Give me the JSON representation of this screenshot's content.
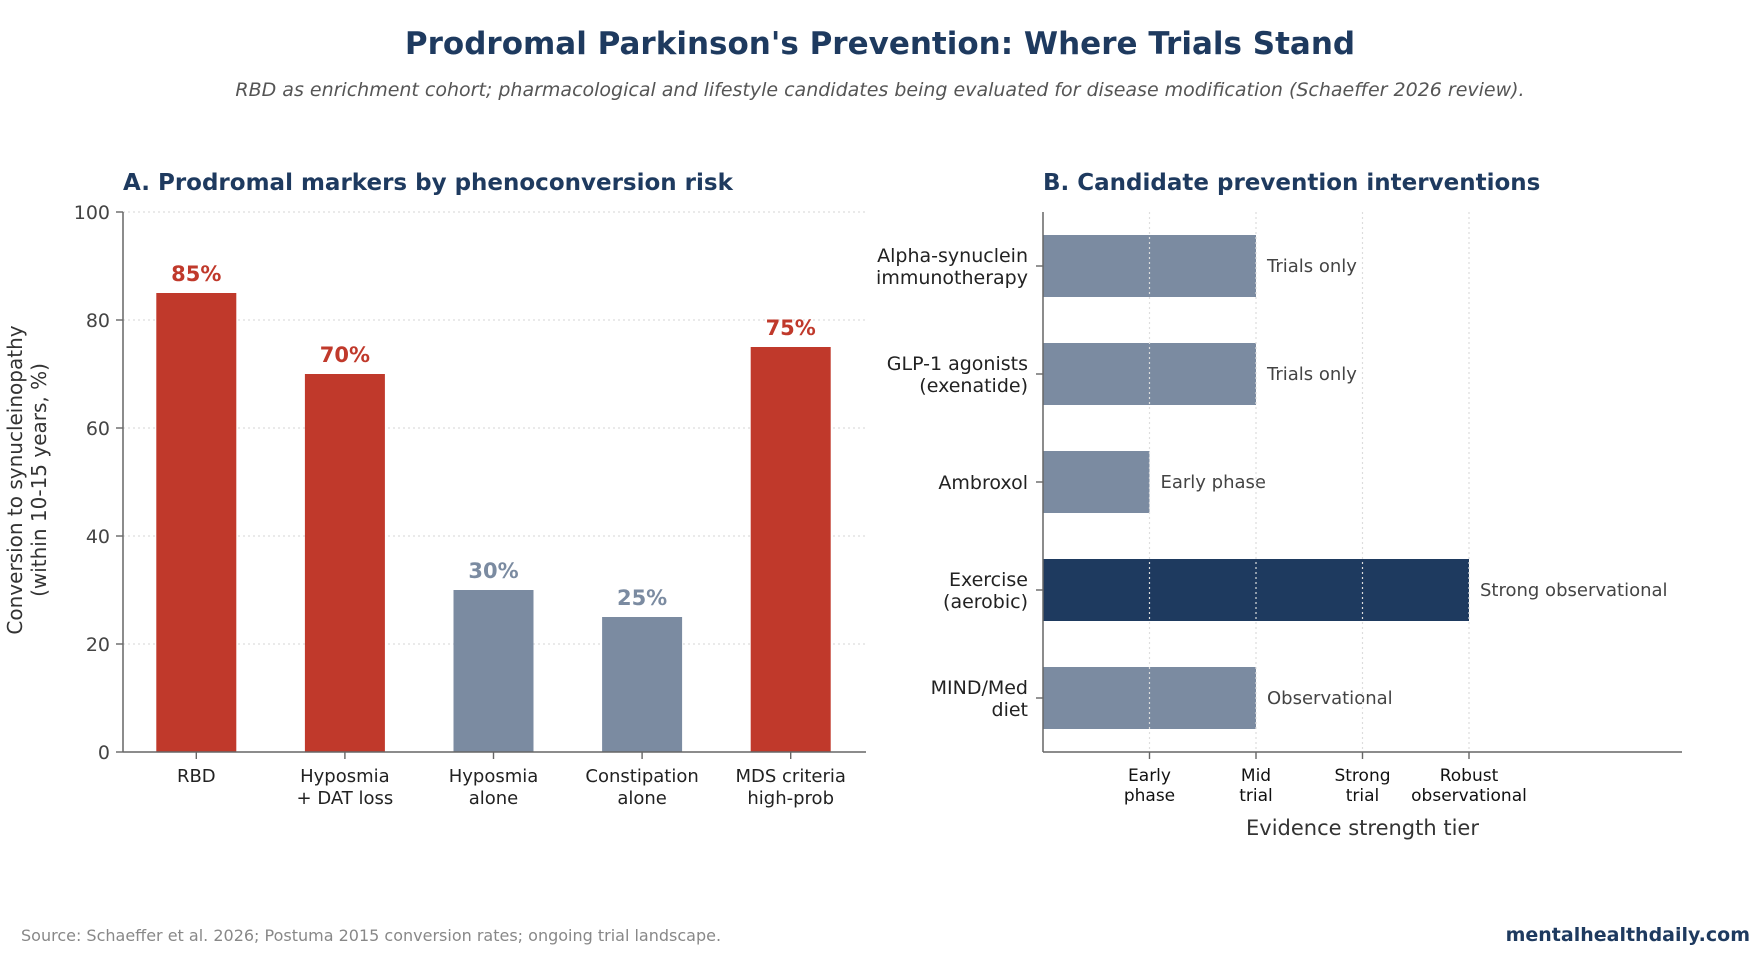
{
  "title": "Prodromal Parkinson's Prevention: Where Trials Stand",
  "subtitle": "RBD as enrichment cohort; pharmacological and lifestyle candidates being evaluated for disease modification (Schaeffer 2026 review).",
  "footer": {
    "source": "Source: Schaeffer et al. 2026; Postuma 2015 conversion rates; ongoing trial landscape.",
    "brand": "mentalhealthdaily.com"
  },
  "colors": {
    "highlight": "#c0392b",
    "muted": "#7b8ba1",
    "navy": "#1e3a5f"
  },
  "chart_data": [
    {
      "type": "bar",
      "title": "A. Prodromal markers by phenoconversion risk",
      "xlabel": "",
      "ylabel": "Conversion to synucleinopathy\n(within 10-15 years, %)",
      "ylim": [
        0,
        100
      ],
      "yticks": [
        0,
        20,
        40,
        60,
        80,
        100
      ],
      "grid": true,
      "categories": [
        "RBD\n",
        "Hyposmia\n+ DAT loss",
        "Hyposmia\nalone",
        "Constipation\nalone",
        "MDS criteria\nhigh-prob"
      ],
      "values": [
        85,
        70,
        30,
        25,
        75
      ],
      "data_labels": [
        "85%",
        "70%",
        "30%",
        "25%",
        "75%"
      ],
      "bar_colors": [
        "#c0392b",
        "#c0392b",
        "#7b8ba1",
        "#7b8ba1",
        "#c0392b"
      ]
    },
    {
      "type": "bar",
      "orientation": "horizontal",
      "title": "B. Candidate prevention interventions",
      "xlabel": "Evidence strength tier",
      "ylabel": "",
      "xlim": [
        0,
        6
      ],
      "xticks": [
        1,
        2,
        3,
        4
      ],
      "xtick_labels": [
        "Early\nphase",
        "Mid\ntrial",
        "Strong\ntrial",
        "Robust\nobservational"
      ],
      "grid": true,
      "categories": [
        "Alpha-synuclein\nimmunotherapy",
        "GLP-1 agonists\n(exenatide)",
        "Ambroxol",
        "Exercise\n(aerobic)",
        "MIND/Med\ndiet"
      ],
      "values": [
        2,
        2,
        1,
        4,
        2
      ],
      "data_labels": [
        "Trials only",
        "Trials only",
        "Early phase",
        "Strong observational",
        "Observational"
      ],
      "bar_colors": [
        "#7b8ba1",
        "#7b8ba1",
        "#7b8ba1",
        "#1e3a5f",
        "#7b8ba1"
      ]
    }
  ]
}
